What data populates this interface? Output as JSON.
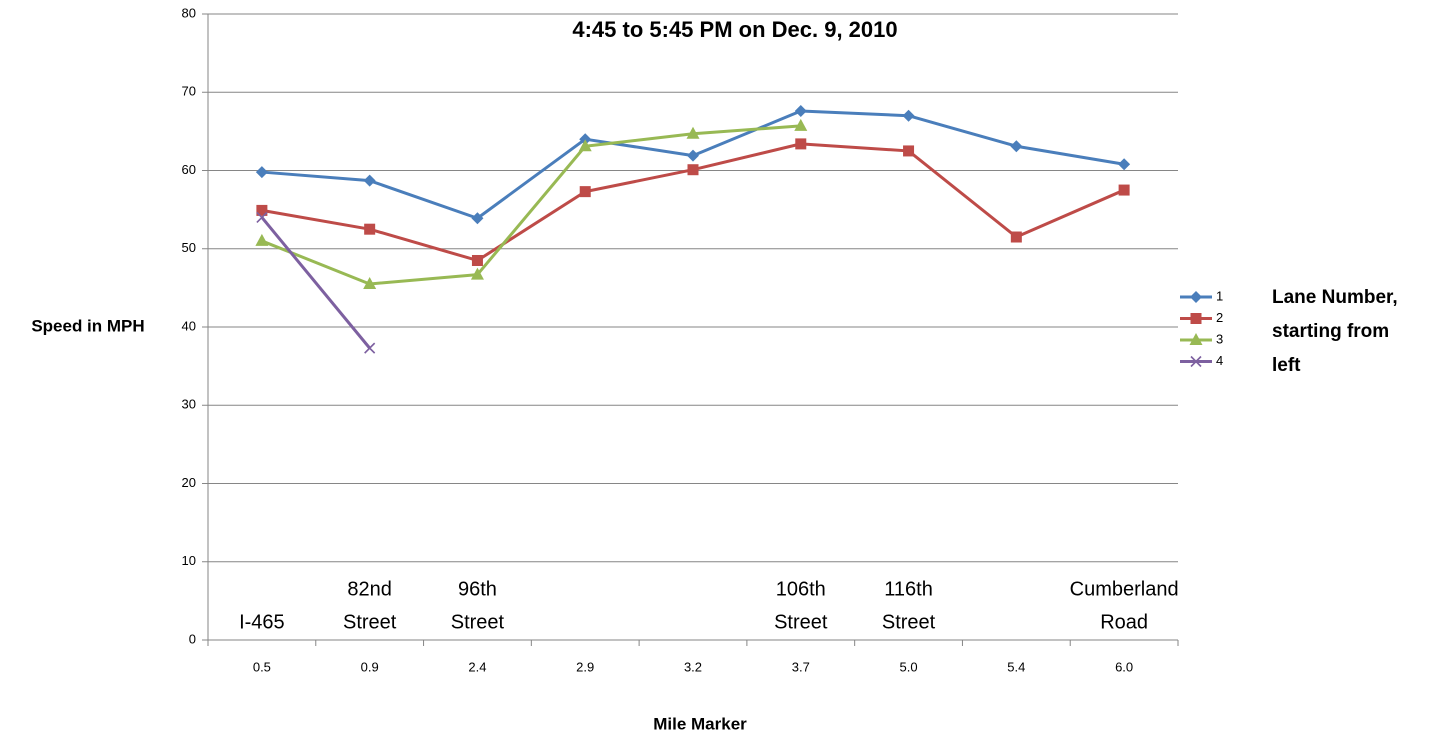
{
  "chart_data": {
    "type": "line",
    "title": "4:45 to 5:45 PM on Dec. 9, 2010",
    "y_label": "Speed in MPH",
    "x_label": "Mile Marker",
    "categories": [
      "0.5",
      "0.9",
      "2.4",
      "2.9",
      "3.2",
      "3.7",
      "5.0",
      "5.4",
      "6.0"
    ],
    "landmarks": [
      [
        "I-465"
      ],
      [
        "82nd",
        "Street"
      ],
      [
        "96th",
        "Street"
      ],
      null,
      null,
      [
        "106th",
        "Street"
      ],
      [
        "116th",
        "Street"
      ],
      null,
      [
        "Cumberland",
        "Road"
      ]
    ],
    "series": [
      {
        "name": "1",
        "color": "#4A7EBB",
        "marker": "diamond",
        "values": [
          59.8,
          58.7,
          53.9,
          64.0,
          61.9,
          67.6,
          67.0,
          63.1,
          60.8
        ]
      },
      {
        "name": "2",
        "color": "#BE4B48",
        "marker": "square",
        "values": [
          54.9,
          52.5,
          48.5,
          57.3,
          60.1,
          63.4,
          62.5,
          51.5,
          57.5
        ]
      },
      {
        "name": "3",
        "color": "#98B954",
        "marker": "triangle",
        "values": [
          51.0,
          45.5,
          46.7,
          63.1,
          64.7,
          65.7,
          null,
          null,
          null
        ]
      },
      {
        "name": "4",
        "color": "#7D60A0",
        "marker": "x",
        "values": [
          54.0,
          37.3,
          null,
          null,
          null,
          null,
          null,
          null,
          null
        ]
      }
    ],
    "legend_title": [
      "Lane Number,",
      "starting from",
      "left"
    ],
    "legend": "right",
    "ylim": [
      0,
      80
    ],
    "yticks": [
      0,
      10,
      20,
      30,
      40,
      50,
      60,
      70,
      80
    ],
    "grid": true
  }
}
